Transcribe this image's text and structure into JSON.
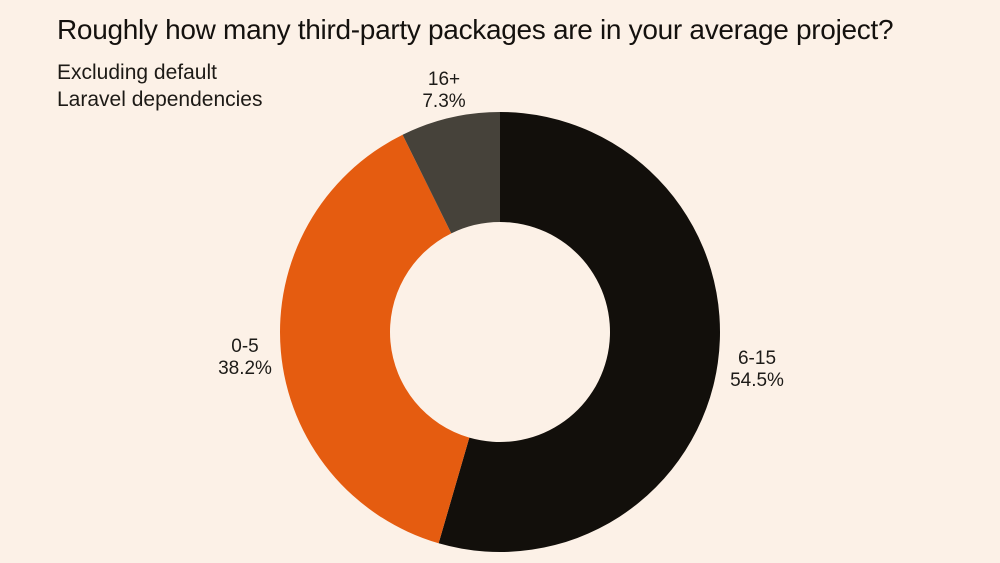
{
  "page": {
    "background_color": "#fcf1e7",
    "text_color": "#1d1b18"
  },
  "header": {
    "title": "Roughly how many third-party packages are in your average project?",
    "subtitle_line1": "Excluding default",
    "subtitle_line2": "Laravel dependencies"
  },
  "chart_data": {
    "type": "pie",
    "variant": "donut",
    "title": "Roughly how many third-party packages are in your average project?",
    "subtitle": "Excluding default Laravel dependencies",
    "start_angle_deg": 0,
    "direction": "clockwise",
    "inner_radius_ratio": 0.5,
    "legend_position": "none",
    "labels_outside": true,
    "segments": [
      {
        "label": "6-15",
        "value": 54.5,
        "percent_label": "54.5%",
        "color": "#120f0b"
      },
      {
        "label": "0-5",
        "value": 38.2,
        "percent_label": "38.2%",
        "color": "#e55c10"
      },
      {
        "label": "16+",
        "value": 7.3,
        "percent_label": "7.3%",
        "color": "#46423a"
      }
    ]
  }
}
